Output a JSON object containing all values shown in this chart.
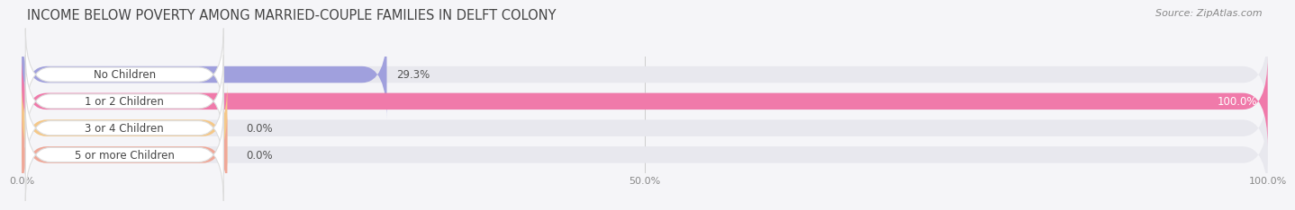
{
  "title": "INCOME BELOW POVERTY AMONG MARRIED-COUPLE FAMILIES IN DELFT COLONY",
  "source": "Source: ZipAtlas.com",
  "categories": [
    "No Children",
    "1 or 2 Children",
    "3 or 4 Children",
    "5 or more Children"
  ],
  "values": [
    29.3,
    100.0,
    0.0,
    0.0
  ],
  "bar_colors": [
    "#a0a0dd",
    "#f07aaa",
    "#f5c888",
    "#f0a898"
  ],
  "bar_bg_color": "#e8e8ee",
  "label_bg_color": "#ffffff",
  "xlim": [
    0,
    100
  ],
  "xticks": [
    0.0,
    50.0,
    100.0
  ],
  "xtick_labels": [
    "0.0%",
    "50.0%",
    "100.0%"
  ],
  "value_fontsize": 8.5,
  "label_fontsize": 8.5,
  "title_fontsize": 10.5,
  "source_fontsize": 8,
  "background_color": "#f5f5f8",
  "bar_height": 0.62,
  "rounding_size": 2.0
}
